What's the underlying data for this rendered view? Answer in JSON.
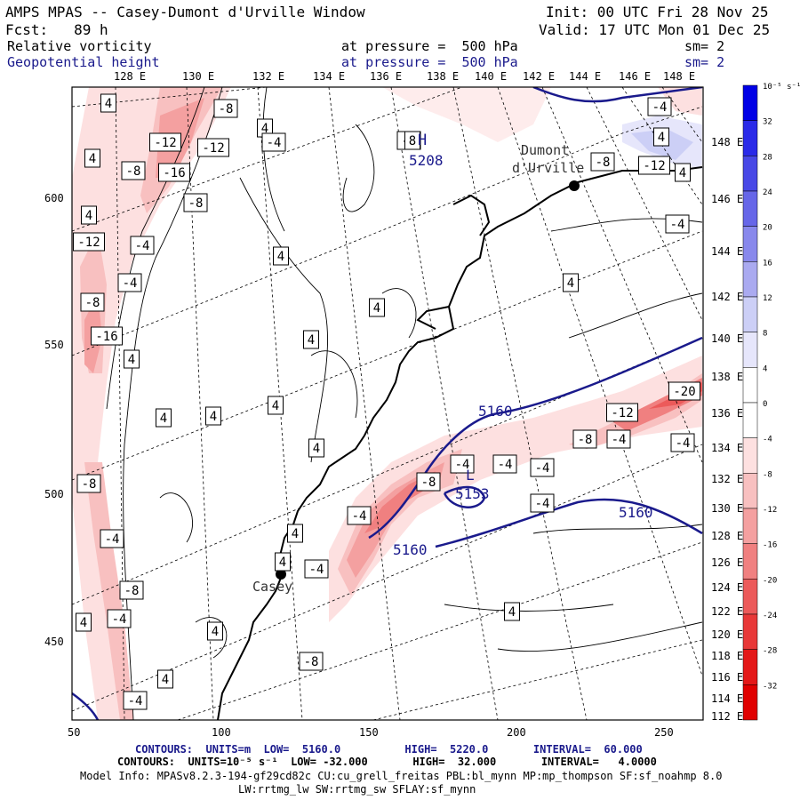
{
  "header": {
    "title": "AMPS MPAS -- Casey-Dumont d'Urville Window",
    "init": "Init: 00 UTC Fri 28 Nov 25",
    "fcst": "Fcst:   89 h",
    "valid": "Valid: 17 UTC Mon 01 Dec 25",
    "field1": "Relative vorticity",
    "field1_level": "at pressure =  500 hPa",
    "field1_sm": "sm= 2",
    "field2": "Geopotential height",
    "field2_level": "at pressure =  500 hPa",
    "field2_sm": "sm= 2"
  },
  "top_lon_labels": [
    "128 E",
    "130 E",
    "132 E",
    "134 E",
    "136 E",
    "138 E",
    "140 E",
    "142 E",
    "144 E",
    "146 E",
    "148 E"
  ],
  "right_lon_labels": [
    "148 E",
    "146 E",
    "144 E",
    "142 E",
    "140 E",
    "138 E",
    "136 E",
    "134 E",
    "132 E",
    "130 E",
    "128 E",
    "126 E",
    "124 E",
    "122 E",
    "120 E",
    "118 E",
    "116 E",
    "114 E",
    "112 E"
  ],
  "x_axis_labels": [
    "50",
    "100",
    "150",
    "200",
    "250"
  ],
  "y_axis_labels": [
    "600",
    "550",
    "500",
    "450"
  ],
  "colorbar": {
    "unit_label": "10⁻⁵ s⁻¹",
    "levels": [
      "32",
      "28",
      "24",
      "20",
      "16",
      "12",
      "8",
      "4",
      "0",
      "-4",
      "-8",
      "-12",
      "-16",
      "-20",
      "-24",
      "-28",
      "-32"
    ],
    "colors": [
      "#0000e6",
      "#2a2ae8",
      "#4848e6",
      "#6666e8",
      "#8888ec",
      "#aaaaf0",
      "#cccff6",
      "#e6e6fb",
      "#ffffff",
      "#ffffff",
      "#fde0e0",
      "#f8c0c0",
      "#f4a0a0",
      "#f08080",
      "#ec5a5a",
      "#e83838",
      "#e41818",
      "#e00000"
    ]
  },
  "stations": [
    "Dumont d'Urville",
    "Casey"
  ],
  "height_labels": [
    "5208",
    "5160",
    "5153",
    "5160",
    "5160"
  ],
  "height_marks": [
    "H",
    "L"
  ],
  "vort_labels": [
    "-8",
    "-12",
    "-16",
    "-8",
    "-12",
    "-8",
    "-4",
    "-4",
    "-8",
    "-12",
    "-16",
    "-8",
    "-4",
    "-8",
    "-4",
    "-8",
    "-4",
    "4",
    "4",
    "4",
    "4",
    "4",
    "4",
    "4",
    "4",
    "4",
    "4",
    "4",
    "4",
    "4",
    "4",
    "4",
    "4",
    "4",
    "4",
    "4",
    "-4",
    "-4",
    "-4",
    "-4",
    "-4",
    "-4",
    "-4",
    "-8",
    "-12",
    "-20",
    "-4",
    "-4",
    "-4",
    "-8",
    "-8",
    "4",
    "4",
    "-4",
    "-4",
    "8",
    "-12"
  ],
  "footer": {
    "line1": "CONTOURS:  UNITS=m  LOW=  5160.0          HIGH=  5220.0       INTERVAL=  60.000",
    "line2": "CONTOURS:  UNITS=10⁻⁵ s⁻¹  LOW= -32.000       HIGH=  32.000       INTERVAL=   4.0000",
    "line3": "Model Info: MPASv8.2.3-194-gf29cd82c CU:cu_grell_freitas PBL:bl_mynn MP:mp_thompson SF:sf_noahmp 8.0",
    "line4": "LW:rrtmg_lw SW:rrtmg_sw SFLAY:sf_mynn"
  }
}
